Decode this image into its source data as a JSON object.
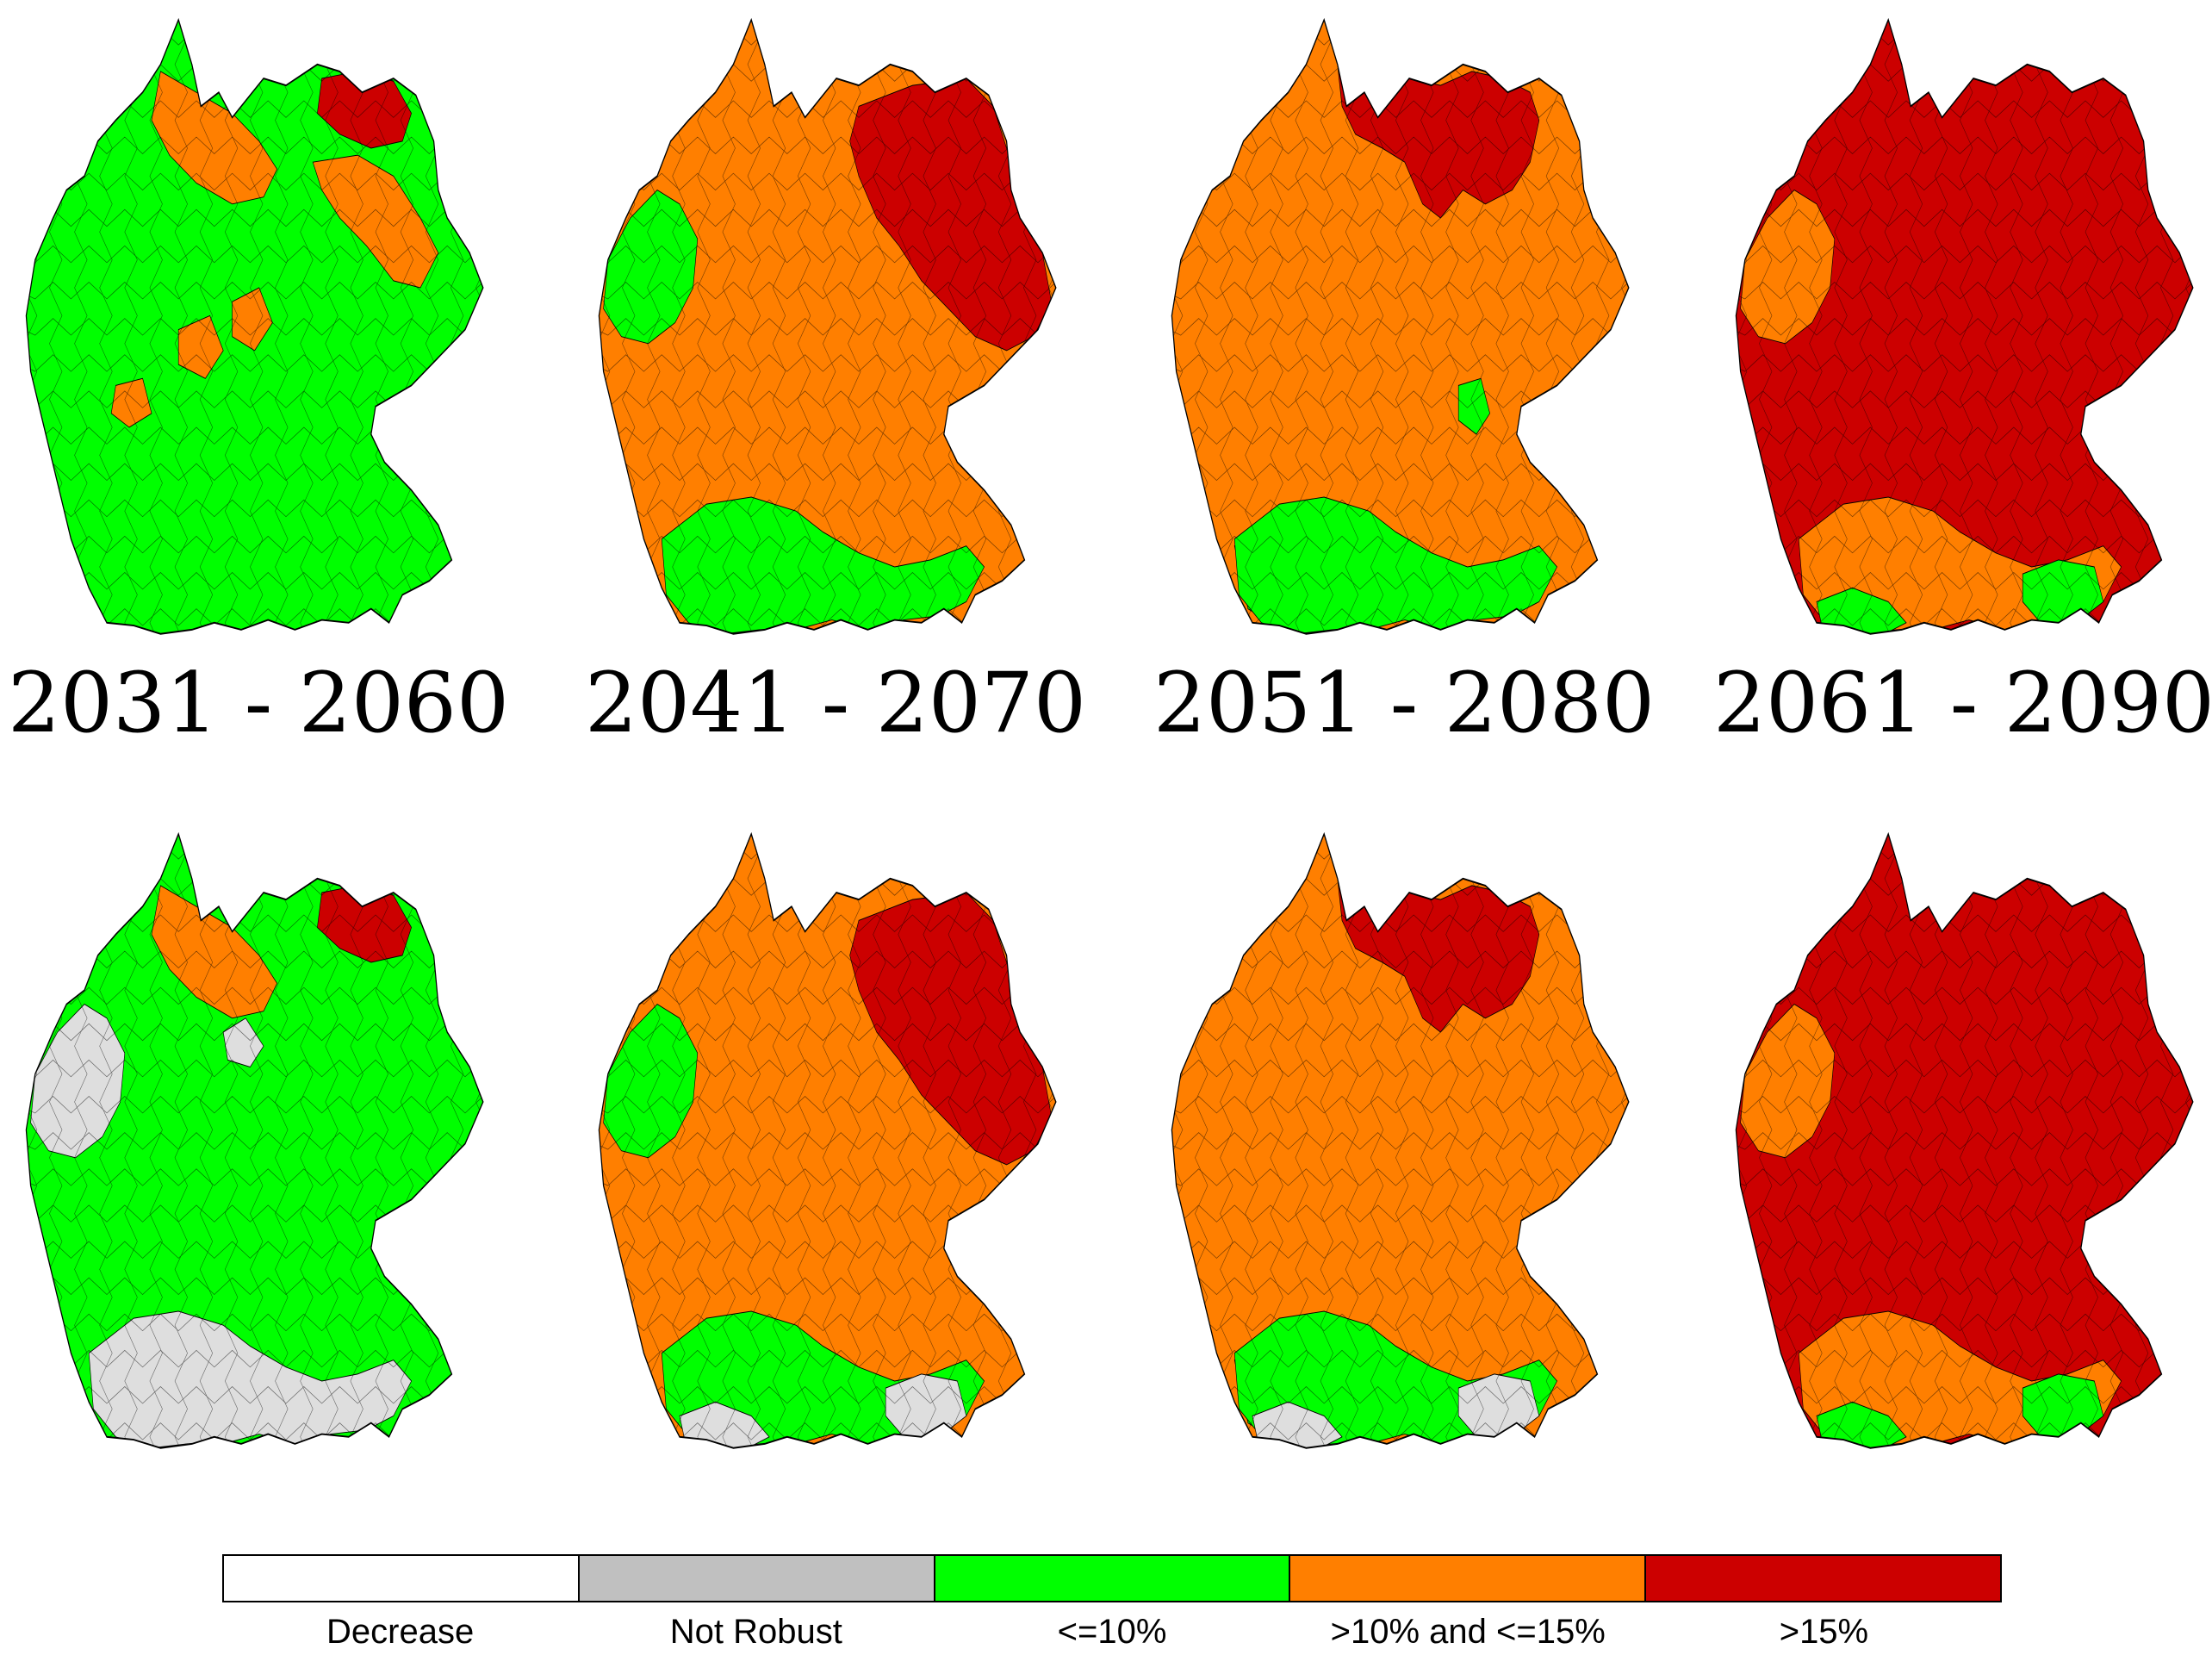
{
  "periods": [
    "2031 - 2060",
    "2041 - 2070",
    "2051 - 2080",
    "2061 - 2090"
  ],
  "rows": [
    "top",
    "bottom"
  ],
  "legend": [
    {
      "label": "Decrease",
      "color": "#ffffff"
    },
    {
      "label": "Not Robust",
      "color": "#c0c0c0"
    },
    {
      "label": "<=10%",
      "color": "#00ff00"
    },
    {
      "label": ">10% and <=15%",
      "color": "#ff7f00"
    },
    {
      "label": ">15%",
      "color": "#cc0000"
    }
  ],
  "colors": {
    "green": "#00ff00",
    "orange": "#ff7f00",
    "red": "#cc0000",
    "grey": "#dedede",
    "outline": "#000000"
  },
  "maps": [
    {
      "id": "top-2031-2060",
      "base": "green",
      "regions": [
        [
          "orange",
          "north-center"
        ],
        [
          "red",
          "northeast-coast"
        ],
        [
          "orange",
          "east-strip"
        ],
        [
          "orange",
          "center-patches"
        ]
      ]
    },
    {
      "id": "top-2041-2070",
      "base": "orange",
      "regions": [
        [
          "red",
          "northeast"
        ],
        [
          "green",
          "west"
        ],
        [
          "green",
          "south"
        ]
      ]
    },
    {
      "id": "top-2051-2080",
      "base": "orange",
      "regions": [
        [
          "red",
          "north"
        ],
        [
          "green",
          "southwest"
        ],
        [
          "green",
          "south"
        ],
        [
          "green",
          "center-small"
        ]
      ]
    },
    {
      "id": "top-2061-2090",
      "base": "red",
      "regions": [
        [
          "orange",
          "west"
        ],
        [
          "orange",
          "south"
        ],
        [
          "green",
          "south-edge"
        ]
      ]
    },
    {
      "id": "bottom-2031-2060",
      "base": "green",
      "regions": [
        [
          "orange",
          "north-center"
        ],
        [
          "red",
          "northeast-coast"
        ],
        [
          "grey",
          "west"
        ],
        [
          "grey",
          "south"
        ],
        [
          "grey",
          "north-patch"
        ]
      ]
    },
    {
      "id": "bottom-2041-2070",
      "base": "orange",
      "regions": [
        [
          "red",
          "northeast"
        ],
        [
          "green",
          "west"
        ],
        [
          "green",
          "south"
        ],
        [
          "grey",
          "south-edge"
        ]
      ]
    },
    {
      "id": "bottom-2051-2080",
      "base": "orange",
      "regions": [
        [
          "red",
          "north"
        ],
        [
          "green",
          "southwest"
        ],
        [
          "green",
          "south"
        ],
        [
          "grey",
          "south-edge"
        ]
      ]
    },
    {
      "id": "bottom-2061-2090",
      "base": "red",
      "regions": [
        [
          "orange",
          "west"
        ],
        [
          "orange",
          "south"
        ],
        [
          "green",
          "south-edge"
        ]
      ]
    }
  ]
}
